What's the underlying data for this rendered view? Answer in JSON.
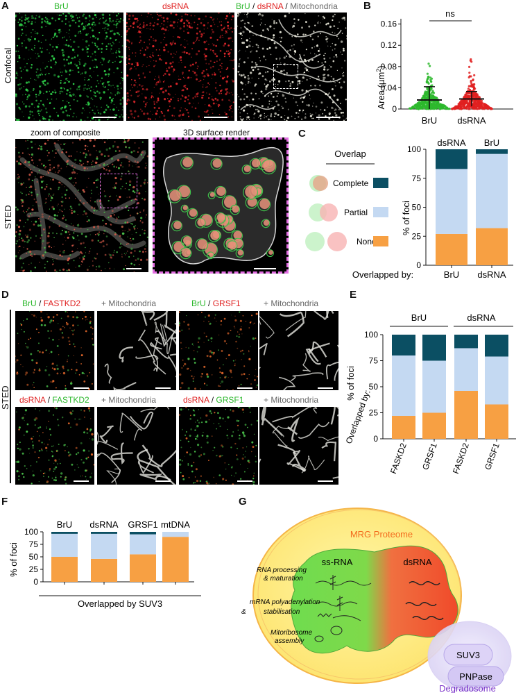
{
  "panels": {
    "A": "A",
    "B": "B",
    "C": "C",
    "D": "D",
    "E": "E",
    "F": "F",
    "G": "G"
  },
  "colors": {
    "complete": "#0b4f63",
    "partial": "#c4d9f2",
    "none": "#f7a043",
    "green": "#2db82d",
    "red": "#e02020",
    "pink": "#e36ee3"
  },
  "A": {
    "row_confocal": "Confocal",
    "row_sted": "STED",
    "titles": {
      "bru": "BrU",
      "dsrna": "dsRNA",
      "sep1": " / ",
      "sep2": " / ",
      "mito": "Mitochondria"
    },
    "zoom_label": "zoom of composite",
    "render_label": "3D surface render"
  },
  "B": {
    "ylabel": "Area (µm",
    "ylabel_sup": "2",
    "ylabel_end": ")",
    "significance": "ns",
    "yticks": [
      "0",
      "0.04",
      "0.08",
      "0.12",
      "0.16"
    ]
  },
  "C": {
    "legend_title": "Overlap",
    "legend_items": [
      "Complete",
      "Partial",
      "None"
    ],
    "ylabel": "% of foci",
    "xlabel": "Overlapped by:",
    "yticks": [
      "0",
      "25",
      "50",
      "75",
      "100"
    ]
  },
  "D": {
    "row_label": "STED",
    "captions": {
      "t1a": "BrU",
      "t1s": " / ",
      "t1b": "FASTKD2",
      "t2": "+ Mitochondria",
      "t3a": "BrU",
      "t3s": " / ",
      "t3b": "GRSF1",
      "t4": "+ Mitochondria",
      "b1a": "dsRNA",
      "b1s": " / ",
      "b1b": "FASTKD2",
      "b2": "+ Mitochondria",
      "b3a": "dsRNA",
      "b3s": " / ",
      "b3b": "GRSF1",
      "b4": "+ Mitochondria"
    }
  },
  "E": {
    "ylabel": "% of foci",
    "groups": [
      "BrU",
      "dsRNA"
    ],
    "xlabel": "Overlapped by:",
    "yticks": [
      "0",
      "25",
      "50",
      "75",
      "100"
    ]
  },
  "F": {
    "ylabel": "% of foci",
    "xlabel": "Overlapped by SUV3",
    "yticks": [
      "0",
      "25",
      "50",
      "75",
      "100"
    ]
  },
  "G": {
    "title": "MRG Proteome",
    "ssrna": "ss-RNA",
    "dsrna": "dsRNA",
    "suv3": "SUV3",
    "pnpase": "PNPase",
    "degradosome": "Degradosome",
    "f1a": "RNA processing",
    "f1b": "& maturation",
    "f2a": "mRNA polyadenylation",
    "f2amp": "&",
    "f2b": "stabilisation",
    "f3a": "Mitoribosome",
    "f3b": "assembly"
  },
  "chart_data": [
    {
      "panel": "B",
      "type": "scatter",
      "categories": [
        "BrU",
        "dsRNA"
      ],
      "ylabel": "Area (µm2)",
      "ylim": [
        0,
        0.17
      ],
      "series": [
        {
          "name": "BrU",
          "mean": 0.017,
          "sd": 0.025,
          "max": 0.16
        },
        {
          "name": "dsRNA",
          "mean": 0.019,
          "sd": 0.014,
          "max": 0.115
        }
      ],
      "annotation": "ns"
    },
    {
      "panel": "C",
      "type": "bar",
      "stacked": true,
      "categories": [
        "BrU",
        "dsRNA"
      ],
      "top_labels": [
        "dsRNA",
        "BrU"
      ],
      "ylabel": "% of foci",
      "ylim": [
        0,
        100
      ],
      "series": [
        {
          "name": "None",
          "values": [
            27,
            32
          ]
        },
        {
          "name": "Partial",
          "values": [
            56,
            64
          ]
        },
        {
          "name": "Complete",
          "values": [
            17,
            4
          ]
        }
      ]
    },
    {
      "panel": "E",
      "type": "bar",
      "stacked": true,
      "categories": [
        "FASKD2",
        "GRSF1",
        "FASKD2",
        "GRSF1"
      ],
      "ylabel": "% of foci",
      "ylim": [
        0,
        100
      ],
      "series": [
        {
          "name": "None",
          "values": [
            22,
            25,
            46,
            33
          ]
        },
        {
          "name": "Partial",
          "values": [
            58,
            50,
            41,
            46
          ]
        },
        {
          "name": "Complete",
          "values": [
            20,
            25,
            13,
            21
          ]
        }
      ]
    },
    {
      "panel": "F",
      "type": "bar",
      "stacked": true,
      "categories": [
        "BrU",
        "dsRNA",
        "GRSF1",
        "mtDNA"
      ],
      "ylabel": "% of foci",
      "xlabel": "Overlapped by SUV3",
      "ylim": [
        0,
        100
      ],
      "series": [
        {
          "name": "None",
          "values": [
            50,
            46,
            55,
            90
          ]
        },
        {
          "name": "Partial",
          "values": [
            46,
            50,
            40,
            10
          ]
        },
        {
          "name": "Complete",
          "values": [
            4,
            4,
            5,
            0
          ]
        }
      ]
    }
  ]
}
